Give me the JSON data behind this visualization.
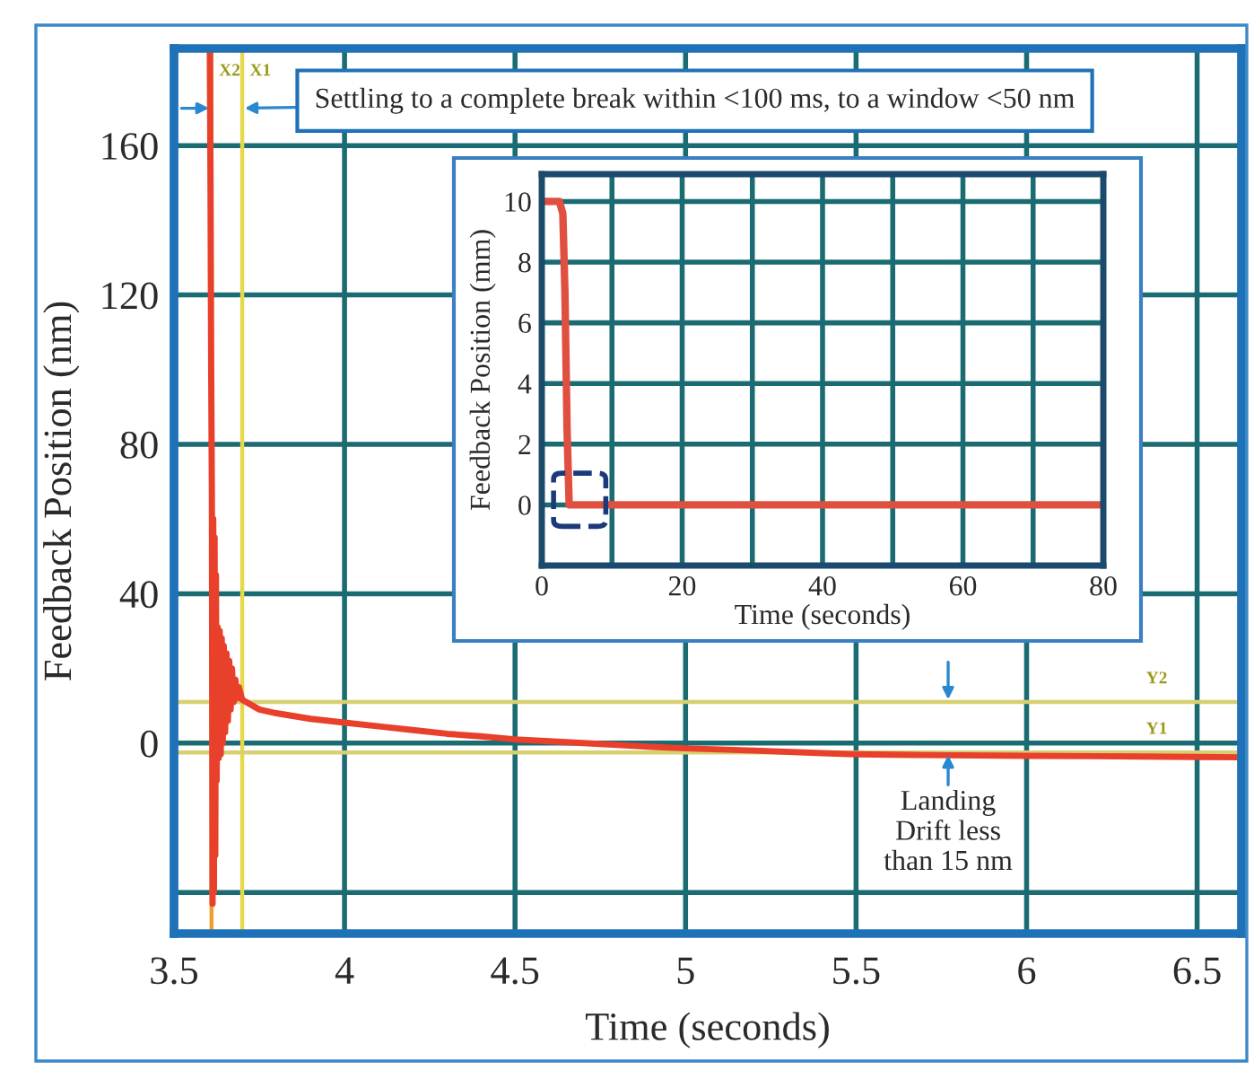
{
  "chart_data": [
    {
      "type": "line",
      "xlabel": "Time (seconds)",
      "ylabel": "Feedback Position (nm)",
      "x": [
        3.605,
        3.607,
        3.609,
        3.611,
        3.613,
        3.615,
        3.617,
        3.619,
        3.621,
        3.623,
        3.625,
        3.628,
        3.631,
        3.634,
        3.637,
        3.64,
        3.643,
        3.646,
        3.65,
        3.654,
        3.658,
        3.662,
        3.666,
        3.67,
        3.675,
        3.68,
        3.685,
        3.69,
        3.7,
        3.75,
        3.8,
        3.9,
        4,
        4.1,
        4.2,
        4.3,
        4.4,
        4.5,
        4.6,
        4.7,
        4.8,
        4.9,
        5,
        5.2,
        5.4,
        5.5,
        5.7,
        6,
        6.2,
        6.5,
        6.63
      ],
      "series": [
        {
          "color": "#e8402a",
          "values": [
            186,
            150,
            100,
            67,
            -43,
            60,
            -40,
            55,
            -30,
            45,
            -10,
            31,
            -4,
            30,
            -3,
            28,
            0,
            26,
            3,
            24,
            6,
            22,
            9,
            20,
            11,
            17,
            12,
            15,
            11.6,
            9,
            8,
            6.5,
            5.5,
            4.5,
            3.5,
            2.5,
            1.8,
            1,
            0.5,
            0,
            -0.5,
            -1,
            -1.4,
            -2,
            -2.7,
            -3,
            -3.2,
            -3.4,
            -3.5,
            -3.7,
            -3.8
          ]
        }
      ],
      "xlim": [
        3.5,
        6.63
      ],
      "xticks": [
        3.5,
        4,
        4.5,
        5,
        5.5,
        6,
        6.5
      ],
      "ylim": [
        -51,
        186
      ],
      "yticks": [
        {
          "value": -40,
          "label": null
        },
        0,
        40,
        80,
        120,
        160
      ],
      "grid": true,
      "marker": "none",
      "line_style": "solid",
      "ref_lines": [
        {
          "axis": "x",
          "value": 3.61,
          "label": "X2",
          "color": "#f0a030"
        },
        {
          "axis": "x",
          "value": 3.7,
          "label": "X1",
          "color": "#e6d84a"
        },
        {
          "axis": "y",
          "value": 11,
          "label": "Y2",
          "color": "#d8d070"
        },
        {
          "axis": "y",
          "value": -2.5,
          "label": "Y1",
          "color": "#d8d070"
        }
      ],
      "annotations": [
        {
          "text": "Settling to a complete break within <100 ms, to a window <50 nm",
          "x": 3.7,
          "y": 170
        },
        {
          "text": "Landing\nDrift less\nthan 15 nm",
          "x": 5.77,
          "y": -2.5
        }
      ]
    },
    {
      "type": "line",
      "xlabel": "Time (seconds)",
      "ylabel": "Feedback Position (mm)",
      "x": [
        0,
        2.5,
        3,
        3.3,
        3.6,
        3.9,
        5,
        80
      ],
      "series": [
        {
          "color": "#e05040",
          "values": [
            10,
            10,
            9.6,
            7,
            2.5,
            0,
            0,
            0
          ]
        }
      ],
      "xlim": [
        0,
        80
      ],
      "xticks": [
        0,
        {
          "value": 10,
          "label": null
        },
        20,
        {
          "value": 30,
          "label": null
        },
        40,
        {
          "value": 50,
          "label": null
        },
        60,
        {
          "value": 70,
          "label": null
        },
        80
      ],
      "ylim": [
        -2,
        10.9
      ],
      "yticks": [
        0,
        2,
        4,
        6,
        8,
        10
      ],
      "grid": true,
      "marker": "none",
      "line_style": "solid"
    }
  ]
}
